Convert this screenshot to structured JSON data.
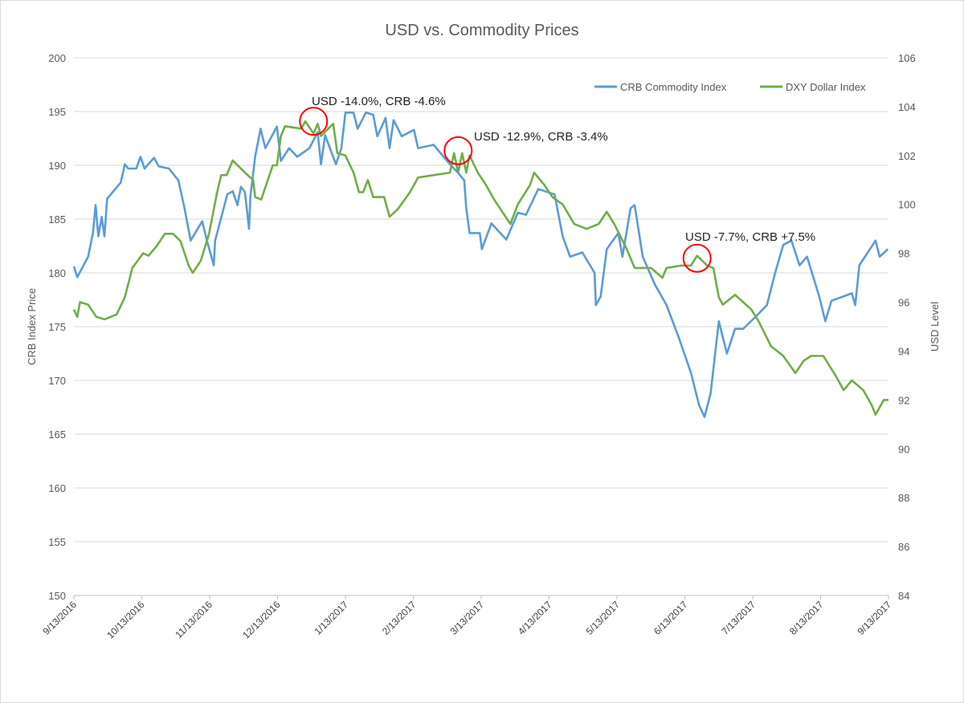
{
  "chart_data": {
    "type": "line",
    "title": "USD vs. Commodity Prices",
    "xlabel": "",
    "ylabel": "CRB Index Price",
    "y2label": "USD Level",
    "x_unit": "months since 9/13/2016",
    "xlim": [
      0,
      12
    ],
    "ylim": [
      150,
      200
    ],
    "y2lim": [
      84,
      106
    ],
    "yticks": [
      150,
      155,
      160,
      165,
      170,
      175,
      180,
      185,
      190,
      195,
      200
    ],
    "y2ticks": [
      84,
      86,
      88,
      90,
      92,
      94,
      96,
      98,
      100,
      102,
      104,
      106
    ],
    "xtick_labels": [
      "9/13/2016",
      "10/13/2016",
      "11/13/2016",
      "12/13/2016",
      "1/13/2017",
      "2/13/2017",
      "3/13/2017",
      "4/13/2017",
      "5/13/2017",
      "6/13/2017",
      "7/13/2017",
      "8/13/2017",
      "9/13/2017"
    ],
    "grid": true,
    "legend_position": "top-right",
    "series": [
      {
        "name": "CRB Commodity Index",
        "axis": "left",
        "color": "#5b9bd5",
        "points": [
          [
            0,
            180.6
          ],
          [
            0.05,
            179.6
          ],
          [
            0.21,
            181.5
          ],
          [
            0.28,
            183.7
          ],
          [
            0.32,
            186.3
          ],
          [
            0.36,
            183.4
          ],
          [
            0.41,
            185.2
          ],
          [
            0.45,
            183.4
          ],
          [
            0.49,
            186.9
          ],
          [
            0.69,
            188.4
          ],
          [
            0.75,
            190.1
          ],
          [
            0.8,
            189.7
          ],
          [
            0.92,
            189.7
          ],
          [
            0.98,
            190.8
          ],
          [
            1.04,
            189.7
          ],
          [
            1.18,
            190.7
          ],
          [
            1.25,
            189.9
          ],
          [
            1.4,
            189.7
          ],
          [
            1.54,
            188.6
          ],
          [
            1.63,
            186.0
          ],
          [
            1.72,
            183.0
          ],
          [
            1.89,
            184.8
          ],
          [
            1.96,
            183.0
          ],
          [
            2.06,
            180.7
          ],
          [
            2.08,
            183.0
          ],
          [
            2.26,
            187.3
          ],
          [
            2.34,
            187.6
          ],
          [
            2.41,
            186.3
          ],
          [
            2.46,
            188.0
          ],
          [
            2.52,
            187.5
          ],
          [
            2.58,
            184.1
          ],
          [
            2.6,
            187.1
          ],
          [
            2.67,
            190.8
          ],
          [
            2.75,
            193.4
          ],
          [
            2.82,
            191.6
          ],
          [
            2.99,
            193.6
          ],
          [
            3.05,
            190.4
          ],
          [
            3.17,
            191.6
          ],
          [
            3.29,
            190.8
          ],
          [
            3.47,
            191.6
          ],
          [
            3.59,
            193.1
          ],
          [
            3.64,
            190.1
          ],
          [
            3.7,
            192.8
          ],
          [
            3.86,
            190.1
          ],
          [
            3.94,
            191.6
          ],
          [
            4.0,
            194.9
          ],
          [
            4.12,
            194.9
          ],
          [
            4.18,
            193.4
          ],
          [
            4.3,
            194.9
          ],
          [
            4.41,
            194.7
          ],
          [
            4.47,
            192.7
          ],
          [
            4.59,
            194.4
          ],
          [
            4.65,
            191.6
          ],
          [
            4.71,
            194.2
          ],
          [
            4.83,
            192.7
          ],
          [
            5.01,
            193.3
          ],
          [
            5.07,
            191.6
          ],
          [
            5.3,
            191.9
          ],
          [
            5.54,
            190.1
          ],
          [
            5.66,
            189.3
          ],
          [
            5.75,
            188.6
          ],
          [
            5.78,
            186.0
          ],
          [
            5.83,
            183.7
          ],
          [
            5.98,
            183.7
          ],
          [
            6.01,
            182.2
          ],
          [
            6.15,
            184.6
          ],
          [
            6.37,
            183.1
          ],
          [
            6.54,
            185.6
          ],
          [
            6.66,
            185.4
          ],
          [
            6.84,
            187.8
          ],
          [
            7.08,
            187.3
          ],
          [
            7.2,
            183.4
          ],
          [
            7.31,
            181.5
          ],
          [
            7.49,
            181.9
          ],
          [
            7.67,
            180.0
          ],
          [
            7.69,
            177.0
          ],
          [
            7.76,
            177.8
          ],
          [
            7.85,
            182.2
          ],
          [
            8.02,
            183.7
          ],
          [
            8.08,
            181.5
          ],
          [
            8.2,
            186.0
          ],
          [
            8.26,
            186.3
          ],
          [
            8.38,
            181.5
          ],
          [
            8.56,
            178.9
          ],
          [
            8.73,
            177.0
          ],
          [
            8.91,
            174.0
          ],
          [
            9.09,
            170.7
          ],
          [
            9.21,
            167.7
          ],
          [
            9.29,
            166.6
          ],
          [
            9.38,
            168.8
          ],
          [
            9.5,
            175.5
          ],
          [
            9.56,
            174.0
          ],
          [
            9.62,
            172.5
          ],
          [
            9.74,
            174.8
          ],
          [
            9.86,
            174.8
          ],
          [
            10.04,
            175.9
          ],
          [
            10.21,
            177.0
          ],
          [
            10.33,
            180.0
          ],
          [
            10.45,
            182.6
          ],
          [
            10.57,
            183.0
          ],
          [
            10.69,
            180.7
          ],
          [
            10.8,
            181.5
          ],
          [
            10.98,
            177.8
          ],
          [
            11.07,
            175.5
          ],
          [
            11.16,
            177.4
          ],
          [
            11.46,
            178.1
          ],
          [
            11.51,
            177.0
          ],
          [
            11.57,
            180.7
          ],
          [
            11.81,
            183.0
          ],
          [
            11.87,
            181.5
          ],
          [
            11.99,
            182.2
          ]
        ]
      },
      {
        "name": "DXY Dollar Index",
        "axis": "right",
        "color": "#70ad47",
        "points": [
          [
            0,
            95.7
          ],
          [
            0.05,
            95.4
          ],
          [
            0.09,
            96.0
          ],
          [
            0.21,
            95.9
          ],
          [
            0.33,
            95.4
          ],
          [
            0.45,
            95.3
          ],
          [
            0.63,
            95.5
          ],
          [
            0.75,
            96.2
          ],
          [
            0.86,
            97.4
          ],
          [
            1.02,
            98.0
          ],
          [
            1.1,
            97.9
          ],
          [
            1.22,
            98.3
          ],
          [
            1.34,
            98.8
          ],
          [
            1.46,
            98.8
          ],
          [
            1.57,
            98.5
          ],
          [
            1.69,
            97.5
          ],
          [
            1.75,
            97.2
          ],
          [
            1.87,
            97.7
          ],
          [
            1.99,
            98.8
          ],
          [
            2.11,
            100.5
          ],
          [
            2.17,
            101.2
          ],
          [
            2.25,
            101.2
          ],
          [
            2.34,
            101.8
          ],
          [
            2.52,
            101.3
          ],
          [
            2.64,
            101.0
          ],
          [
            2.67,
            100.3
          ],
          [
            2.76,
            100.2
          ],
          [
            2.93,
            101.6
          ],
          [
            2.99,
            101.6
          ],
          [
            3.05,
            102.8
          ],
          [
            3.11,
            103.2
          ],
          [
            3.35,
            103.1
          ],
          [
            3.41,
            103.4
          ],
          [
            3.53,
            102.9
          ],
          [
            3.59,
            103.3
          ],
          [
            3.64,
            102.8
          ],
          [
            3.82,
            103.3
          ],
          [
            3.88,
            102.1
          ],
          [
            4.0,
            102.0
          ],
          [
            4.12,
            101.3
          ],
          [
            4.2,
            100.5
          ],
          [
            4.26,
            100.5
          ],
          [
            4.33,
            101.0
          ],
          [
            4.41,
            100.3
          ],
          [
            4.57,
            100.3
          ],
          [
            4.65,
            99.5
          ],
          [
            4.77,
            99.8
          ],
          [
            4.95,
            100.5
          ],
          [
            5.07,
            101.1
          ],
          [
            5.54,
            101.3
          ],
          [
            5.6,
            102.1
          ],
          [
            5.66,
            101.3
          ],
          [
            5.72,
            102.1
          ],
          [
            5.78,
            101.3
          ],
          [
            5.83,
            102.0
          ],
          [
            5.95,
            101.3
          ],
          [
            6.07,
            100.8
          ],
          [
            6.19,
            100.2
          ],
          [
            6.31,
            99.7
          ],
          [
            6.43,
            99.2
          ],
          [
            6.54,
            100.0
          ],
          [
            6.72,
            100.8
          ],
          [
            6.78,
            101.3
          ],
          [
            6.93,
            100.8
          ],
          [
            7.05,
            100.3
          ],
          [
            7.2,
            100.0
          ],
          [
            7.37,
            99.2
          ],
          [
            7.55,
            99.0
          ],
          [
            7.73,
            99.2
          ],
          [
            7.85,
            99.7
          ],
          [
            7.96,
            99.2
          ],
          [
            8.14,
            98.2
          ],
          [
            8.26,
            97.4
          ],
          [
            8.5,
            97.4
          ],
          [
            8.67,
            97.0
          ],
          [
            8.73,
            97.4
          ],
          [
            8.95,
            97.5
          ],
          [
            9.09,
            97.5
          ],
          [
            9.18,
            97.9
          ],
          [
            9.33,
            97.5
          ],
          [
            9.42,
            97.4
          ],
          [
            9.5,
            96.2
          ],
          [
            9.56,
            95.9
          ],
          [
            9.74,
            96.3
          ],
          [
            9.98,
            95.7
          ],
          [
            10.09,
            95.2
          ],
          [
            10.27,
            94.2
          ],
          [
            10.45,
            93.8
          ],
          [
            10.63,
            93.1
          ],
          [
            10.75,
            93.6
          ],
          [
            10.86,
            93.8
          ],
          [
            11.04,
            93.8
          ],
          [
            11.22,
            93.0
          ],
          [
            11.34,
            92.4
          ],
          [
            11.46,
            92.8
          ],
          [
            11.63,
            92.4
          ],
          [
            11.75,
            91.8
          ],
          [
            11.81,
            91.4
          ],
          [
            11.93,
            92.0
          ],
          [
            12.0,
            92.0
          ]
        ]
      }
    ],
    "annotations": [
      {
        "text": "USD -14.0%, CRB -4.6%",
        "x": 3.53,
        "y2": 103.4,
        "circle_color": "#ff0000"
      },
      {
        "text": "USD -12.9%, CRB -3.4%",
        "x": 5.66,
        "y2": 102.2,
        "circle_color": "#ff0000"
      },
      {
        "text": "USD -7.7%, CRB +7.5%",
        "x": 9.18,
        "y2": 97.8,
        "circle_color": "#ff0000"
      }
    ]
  }
}
